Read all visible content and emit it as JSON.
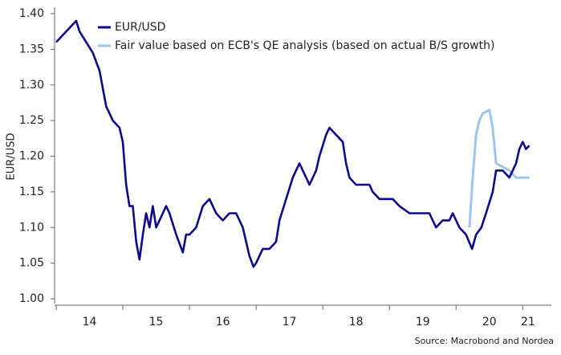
{
  "chart_data": {
    "type": "line",
    "y_label": "EUR/USD",
    "source": "Source: Macrobond and Nordea",
    "xlim": [
      2014,
      2021.43
    ],
    "xticks": [
      {
        "value": 2014.5,
        "label": "14"
      },
      {
        "value": 2015.5,
        "label": "15"
      },
      {
        "value": 2016.5,
        "label": "16"
      },
      {
        "value": 2017.5,
        "label": "17"
      },
      {
        "value": 2018.5,
        "label": "18"
      },
      {
        "value": 2019.5,
        "label": "19"
      },
      {
        "value": 2020.5,
        "label": "20"
      },
      {
        "value": 2021.08,
        "label": "21"
      }
    ],
    "xminor": [
      2014,
      2015,
      2016,
      2017,
      2018,
      2019,
      2020,
      2021
    ],
    "ylim": [
      1.0,
      1.4
    ],
    "yticks": [
      {
        "value": 1.0,
        "label": "1.00"
      },
      {
        "value": 1.05,
        "label": "1.05"
      },
      {
        "value": 1.1,
        "label": "1.10"
      },
      {
        "value": 1.15,
        "label": "1.15"
      },
      {
        "value": 1.2,
        "label": "1.20"
      },
      {
        "value": 1.25,
        "label": "1.25"
      },
      {
        "value": 1.3,
        "label": "1.30"
      },
      {
        "value": 1.35,
        "label": "1.35"
      },
      {
        "value": 1.4,
        "label": "1.40"
      }
    ],
    "legend": "top-left",
    "series": [
      {
        "name": "EUR/USD",
        "color": "#0b0b8f",
        "x": [
          2014.0,
          2014.05,
          2014.1,
          2014.2,
          2014.3,
          2014.35,
          2014.45,
          2014.55,
          2014.65,
          2014.75,
          2014.85,
          2014.95,
          2015.0,
          2015.05,
          2015.1,
          2015.15,
          2015.2,
          2015.25,
          2015.3,
          2015.35,
          2015.4,
          2015.45,
          2015.5,
          2015.55,
          2015.6,
          2015.65,
          2015.7,
          2015.8,
          2015.9,
          2015.95,
          2016.0,
          2016.1,
          2016.2,
          2016.3,
          2016.4,
          2016.5,
          2016.6,
          2016.7,
          2016.8,
          2016.9,
          2016.96,
          2017.0,
          2017.1,
          2017.2,
          2017.3,
          2017.35,
          2017.45,
          2017.55,
          2017.65,
          2017.7,
          2017.8,
          2017.9,
          2017.95,
          2018.05,
          2018.1,
          2018.2,
          2018.3,
          2018.35,
          2018.4,
          2018.5,
          2018.6,
          2018.7,
          2018.75,
          2018.85,
          2018.95,
          2019.05,
          2019.15,
          2019.3,
          2019.4,
          2019.5,
          2019.6,
          2019.7,
          2019.8,
          2019.9,
          2019.95,
          2020.05,
          2020.15,
          2020.24,
          2020.3,
          2020.38,
          2020.45,
          2020.55,
          2020.6,
          2020.7,
          2020.8,
          2020.9,
          2020.95,
          2021.0,
          2021.05,
          2021.1
        ],
        "values": [
          1.36,
          1.365,
          1.37,
          1.38,
          1.39,
          1.375,
          1.36,
          1.345,
          1.32,
          1.27,
          1.25,
          1.24,
          1.22,
          1.16,
          1.13,
          1.13,
          1.08,
          1.055,
          1.09,
          1.12,
          1.1,
          1.13,
          1.1,
          1.11,
          1.12,
          1.13,
          1.12,
          1.09,
          1.065,
          1.09,
          1.09,
          1.1,
          1.13,
          1.14,
          1.12,
          1.11,
          1.12,
          1.12,
          1.1,
          1.06,
          1.045,
          1.05,
          1.07,
          1.07,
          1.08,
          1.11,
          1.14,
          1.17,
          1.19,
          1.18,
          1.16,
          1.18,
          1.2,
          1.23,
          1.24,
          1.23,
          1.22,
          1.19,
          1.17,
          1.16,
          1.16,
          1.16,
          1.15,
          1.14,
          1.14,
          1.14,
          1.13,
          1.12,
          1.12,
          1.12,
          1.12,
          1.1,
          1.11,
          1.11,
          1.12,
          1.1,
          1.09,
          1.07,
          1.09,
          1.1,
          1.12,
          1.15,
          1.18,
          1.18,
          1.17,
          1.19,
          1.21,
          1.22,
          1.21,
          1.215
        ]
      },
      {
        "name": "Fair value based on ECB's QE analysis (based on actual B/S growth)",
        "color": "#9ec5ec",
        "x": [
          2020.2,
          2020.25,
          2020.3,
          2020.35,
          2020.4,
          2020.5,
          2020.55,
          2020.6,
          2020.7,
          2020.8,
          2020.9,
          2021.0,
          2021.1
        ],
        "values": [
          1.1,
          1.17,
          1.23,
          1.25,
          1.26,
          1.265,
          1.24,
          1.19,
          1.185,
          1.18,
          1.17,
          1.17,
          1.17
        ]
      }
    ]
  }
}
